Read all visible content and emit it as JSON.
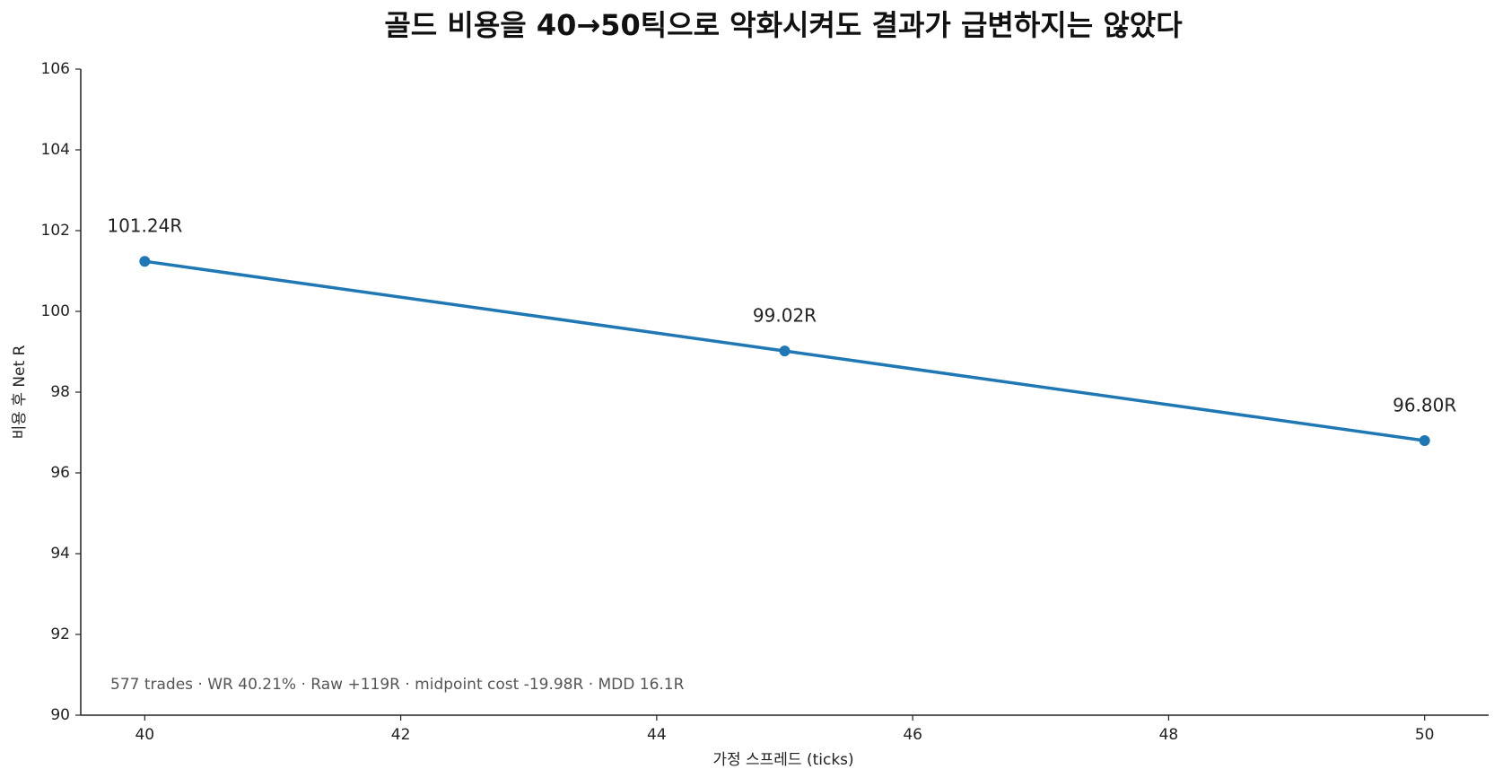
{
  "chart_data": {
    "type": "line",
    "title": "골드 비용을 40→50틱으로 악화시켜도 결과가 급변하지는 않았다",
    "x_label": "가정 스프레드 (ticks)",
    "y_label": "비용 후 Net R",
    "annotation": "577 trades · WR 40.21% · Raw +119R · midpoint cost -19.98R · MDD 16.1R",
    "x": [
      40,
      45,
      50
    ],
    "series": [
      {
        "name": "Net R",
        "color": "#1f77b4",
        "values": [
          101.24,
          99.02,
          96.8
        ],
        "value_labels": [
          "101.24R",
          "99.02R",
          "96.80R"
        ]
      }
    ],
    "xlim": [
      39.5,
      50.5
    ],
    "xticks": [
      40,
      42,
      44,
      46,
      48,
      50
    ],
    "ylim": [
      90,
      106
    ],
    "yticks": [
      90,
      92,
      94,
      96,
      98,
      100,
      102,
      104,
      106
    ],
    "grid": false
  }
}
